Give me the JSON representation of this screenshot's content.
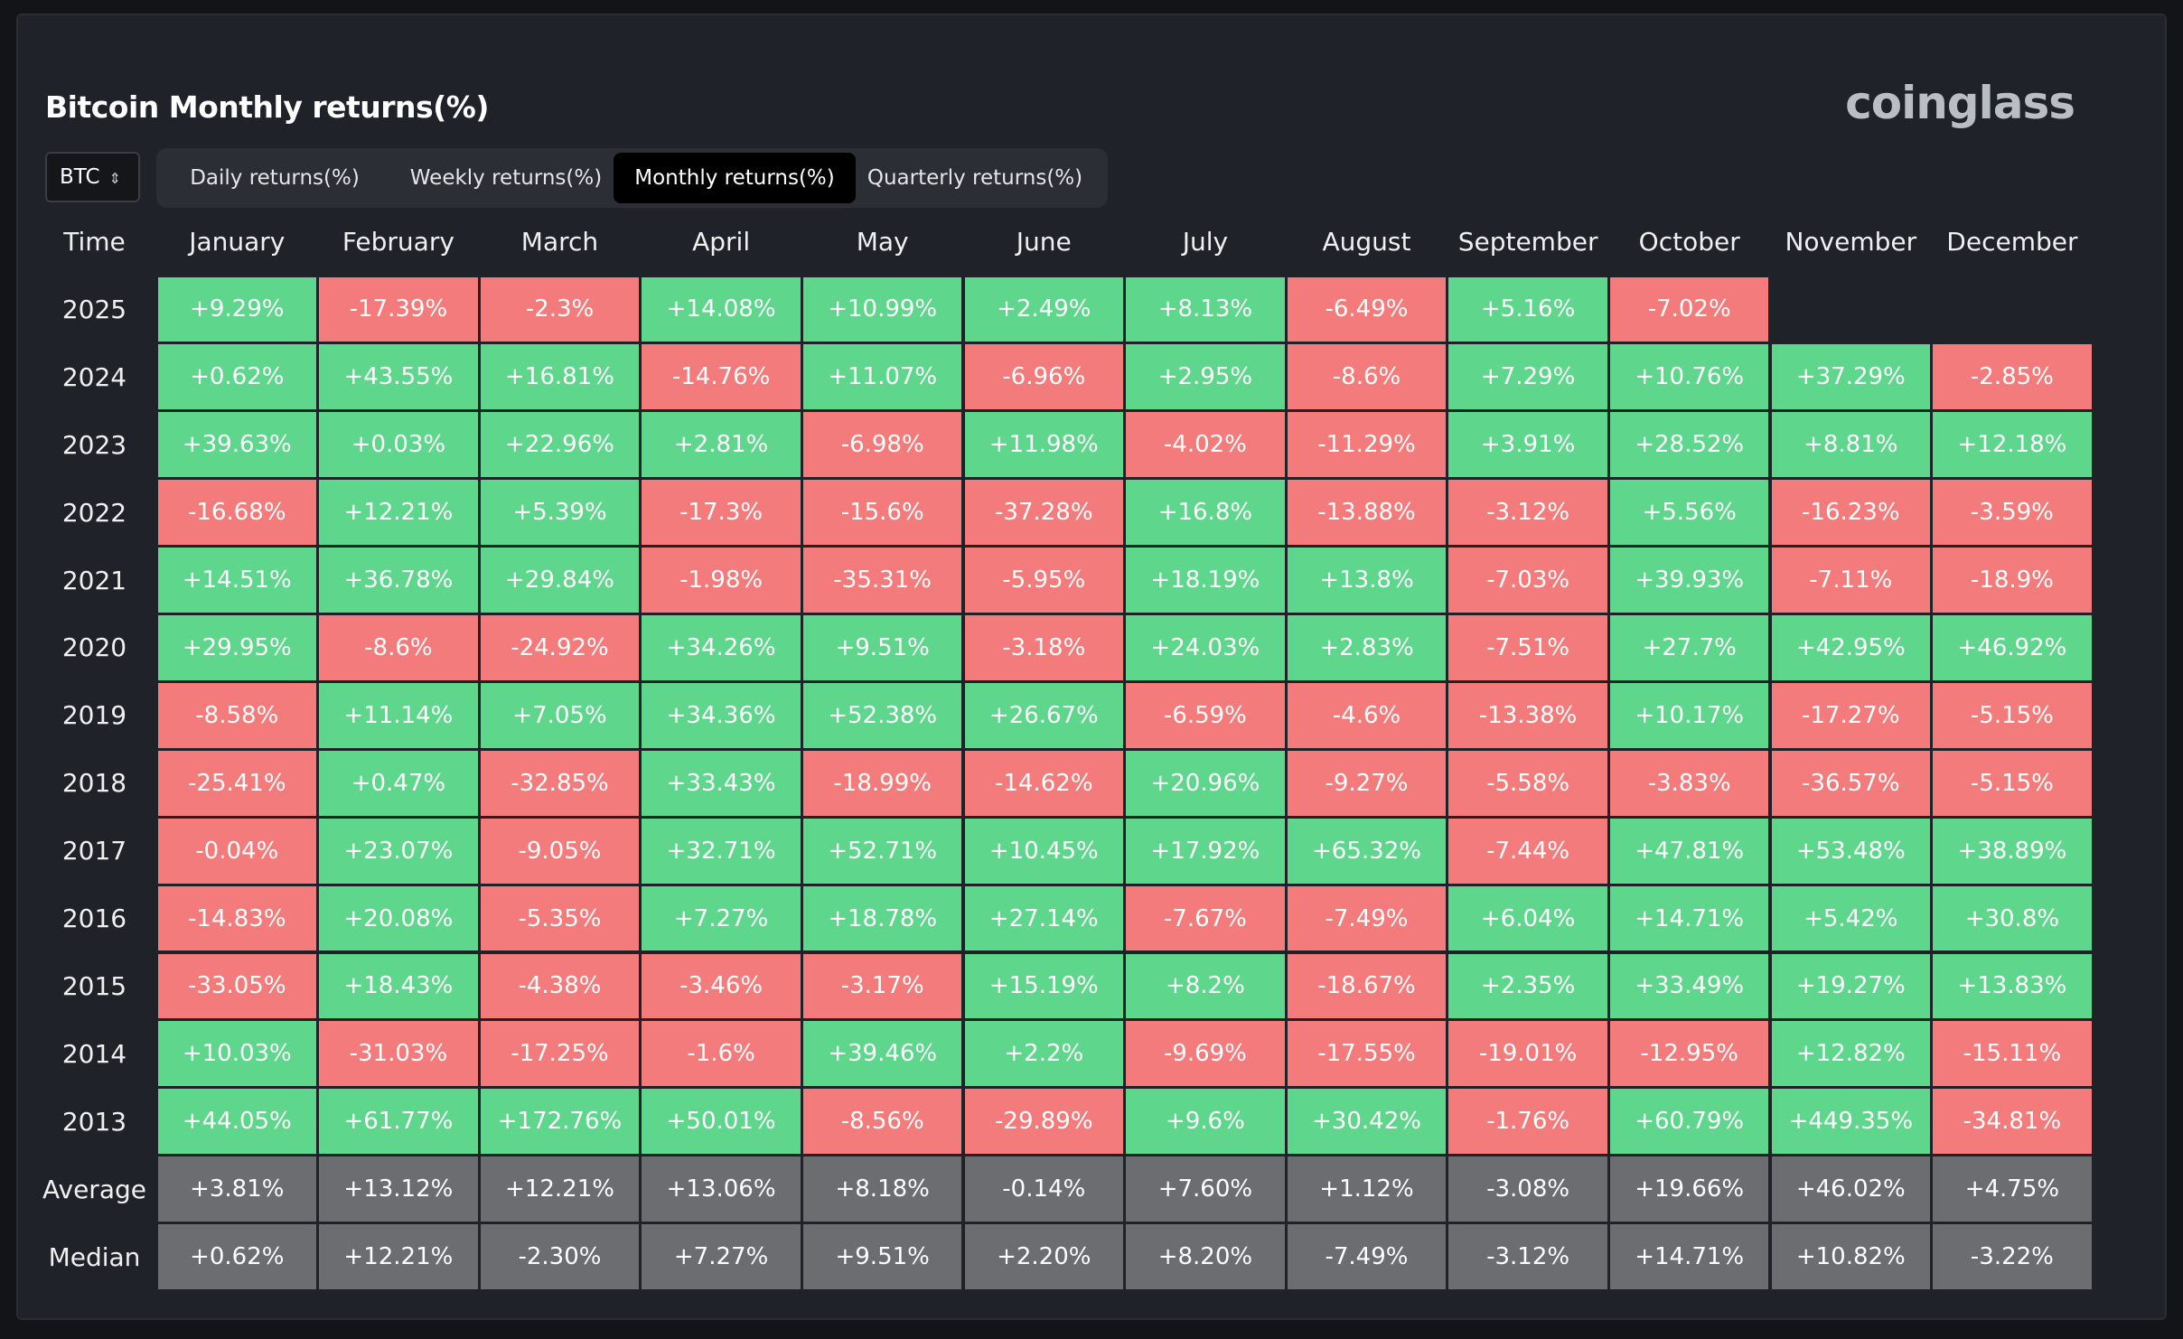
{
  "header": {
    "title": "Bitcoin Monthly returns(%)",
    "logo": "coinglass"
  },
  "controls": {
    "selector": "BTC",
    "tabs": [
      "Daily returns(%)",
      "Weekly returns(%)",
      "Monthly returns(%)",
      "Quarterly returns(%)"
    ],
    "active_tab": 2
  },
  "colors": {
    "positive": "#5ed68c",
    "negative": "#f47b7b",
    "summary": "#6b6d71"
  },
  "table": {
    "columns": [
      "Time",
      "January",
      "February",
      "March",
      "April",
      "May",
      "June",
      "July",
      "August",
      "September",
      "October",
      "November",
      "December"
    ],
    "rows": [
      {
        "label": "2025",
        "cells": [
          "+9.29%",
          "-17.39%",
          "-2.3%",
          "+14.08%",
          "+10.99%",
          "+2.49%",
          "+8.13%",
          "-6.49%",
          "+5.16%",
          "-7.02%"
        ]
      },
      {
        "label": "2024",
        "cells": [
          "+0.62%",
          "+43.55%",
          "+16.81%",
          "-14.76%",
          "+11.07%",
          "-6.96%",
          "+2.95%",
          "-8.6%",
          "+7.29%",
          "+10.76%",
          "+37.29%",
          "-2.85%"
        ]
      },
      {
        "label": "2023",
        "cells": [
          "+39.63%",
          "+0.03%",
          "+22.96%",
          "+2.81%",
          "-6.98%",
          "+11.98%",
          "-4.02%",
          "-11.29%",
          "+3.91%",
          "+28.52%",
          "+8.81%",
          "+12.18%"
        ]
      },
      {
        "label": "2022",
        "cells": [
          "-16.68%",
          "+12.21%",
          "+5.39%",
          "-17.3%",
          "-15.6%",
          "-37.28%",
          "+16.8%",
          "-13.88%",
          "-3.12%",
          "+5.56%",
          "-16.23%",
          "-3.59%"
        ]
      },
      {
        "label": "2021",
        "cells": [
          "+14.51%",
          "+36.78%",
          "+29.84%",
          "-1.98%",
          "-35.31%",
          "-5.95%",
          "+18.19%",
          "+13.8%",
          "-7.03%",
          "+39.93%",
          "-7.11%",
          "-18.9%"
        ]
      },
      {
        "label": "2020",
        "cells": [
          "+29.95%",
          "-8.6%",
          "-24.92%",
          "+34.26%",
          "+9.51%",
          "-3.18%",
          "+24.03%",
          "+2.83%",
          "-7.51%",
          "+27.7%",
          "+42.95%",
          "+46.92%"
        ]
      },
      {
        "label": "2019",
        "cells": [
          "-8.58%",
          "+11.14%",
          "+7.05%",
          "+34.36%",
          "+52.38%",
          "+26.67%",
          "-6.59%",
          "-4.6%",
          "-13.38%",
          "+10.17%",
          "-17.27%",
          "-5.15%"
        ]
      },
      {
        "label": "2018",
        "cells": [
          "-25.41%",
          "+0.47%",
          "-32.85%",
          "+33.43%",
          "-18.99%",
          "-14.62%",
          "+20.96%",
          "-9.27%",
          "-5.58%",
          "-3.83%",
          "-36.57%",
          "-5.15%"
        ]
      },
      {
        "label": "2017",
        "cells": [
          "-0.04%",
          "+23.07%",
          "-9.05%",
          "+32.71%",
          "+52.71%",
          "+10.45%",
          "+17.92%",
          "+65.32%",
          "-7.44%",
          "+47.81%",
          "+53.48%",
          "+38.89%"
        ]
      },
      {
        "label": "2016",
        "cells": [
          "-14.83%",
          "+20.08%",
          "-5.35%",
          "+7.27%",
          "+18.78%",
          "+27.14%",
          "-7.67%",
          "-7.49%",
          "+6.04%",
          "+14.71%",
          "+5.42%",
          "+30.8%"
        ]
      },
      {
        "label": "2015",
        "cells": [
          "-33.05%",
          "+18.43%",
          "-4.38%",
          "-3.46%",
          "-3.17%",
          "+15.19%",
          "+8.2%",
          "-18.67%",
          "+2.35%",
          "+33.49%",
          "+19.27%",
          "+13.83%"
        ]
      },
      {
        "label": "2014",
        "cells": [
          "+10.03%",
          "-31.03%",
          "-17.25%",
          "-1.6%",
          "+39.46%",
          "+2.2%",
          "-9.69%",
          "-17.55%",
          "-19.01%",
          "-12.95%",
          "+12.82%",
          "-15.11%"
        ]
      },
      {
        "label": "2013",
        "cells": [
          "+44.05%",
          "+61.77%",
          "+172.76%",
          "+50.01%",
          "-8.56%",
          "-29.89%",
          "+9.6%",
          "+30.42%",
          "-1.76%",
          "+60.79%",
          "+449.35%",
          "-34.81%"
        ]
      }
    ],
    "summary": [
      {
        "label": "Average",
        "cells": [
          "+3.81%",
          "+13.12%",
          "+12.21%",
          "+13.06%",
          "+8.18%",
          "-0.14%",
          "+7.60%",
          "+1.12%",
          "-3.08%",
          "+19.66%",
          "+46.02%",
          "+4.75%"
        ]
      },
      {
        "label": "Median",
        "cells": [
          "+0.62%",
          "+12.21%",
          "-2.30%",
          "+7.27%",
          "+9.51%",
          "+2.20%",
          "+8.20%",
          "-7.49%",
          "-3.12%",
          "+14.71%",
          "+10.82%",
          "-3.22%"
        ]
      }
    ]
  }
}
